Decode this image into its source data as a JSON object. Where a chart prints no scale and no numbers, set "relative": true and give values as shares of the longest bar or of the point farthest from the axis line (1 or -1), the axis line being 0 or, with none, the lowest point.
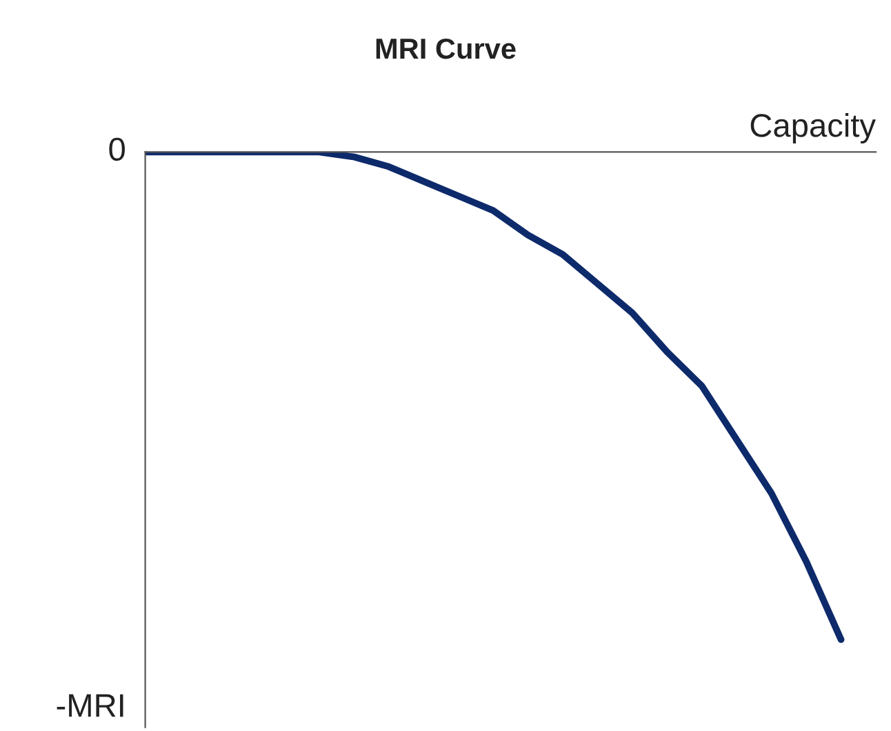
{
  "chart_data": {
    "type": "line",
    "title": "MRI Curve",
    "xlabel": "Capacity",
    "relative": true,
    "annotations": [
      "0",
      "-MRI"
    ],
    "categories": [
      null,
      null,
      null,
      null,
      null,
      null,
      null,
      null,
      null,
      null,
      null,
      null,
      null,
      null,
      null,
      null,
      null,
      null,
      null,
      null,
      null
    ],
    "series": [
      {
        "color": "#0d2a6b",
        "values": [
          0,
          0,
          0,
          0,
          0,
          0,
          -0.01,
          -0.03,
          -0.06,
          -0.09,
          -0.12,
          -0.17,
          -0.21,
          -0.27,
          -0.33,
          -0.41,
          -0.48,
          -0.59,
          -0.7,
          -0.84,
          -1
        ]
      }
    ]
  }
}
